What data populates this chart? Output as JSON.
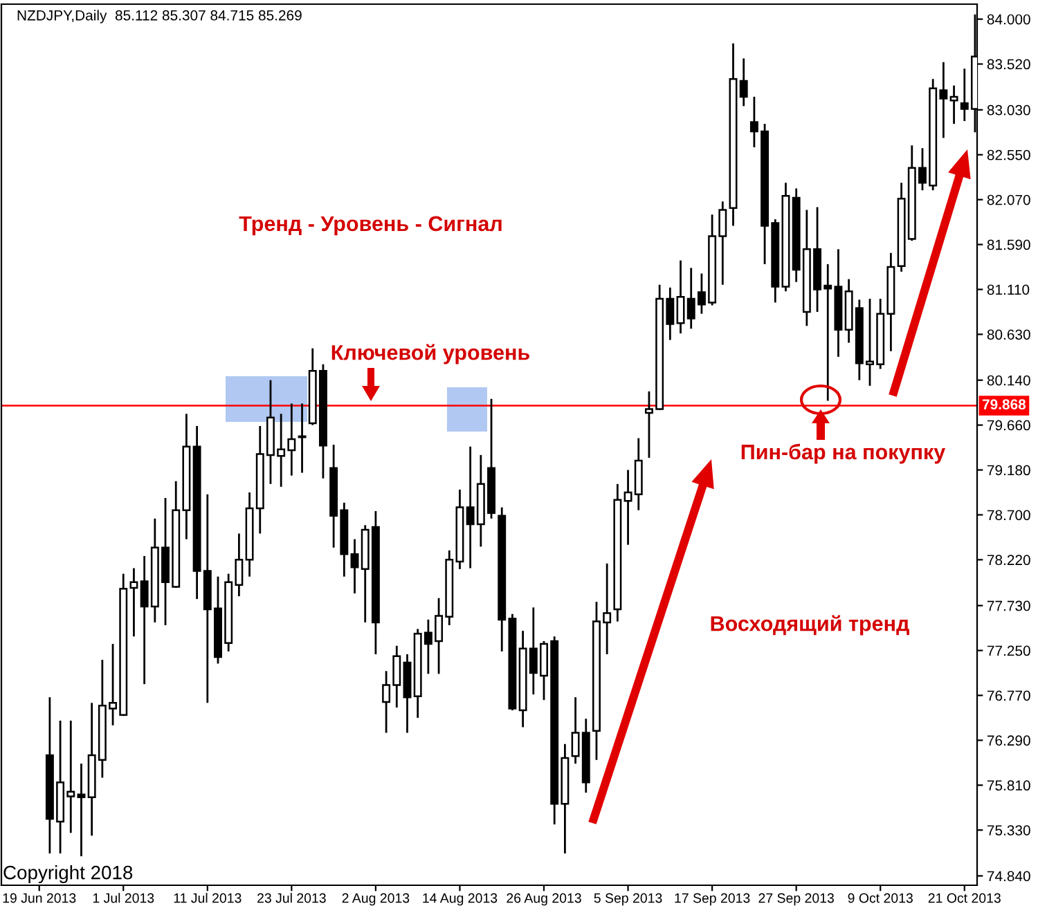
{
  "chart_data": {
    "type": "candlestick",
    "annotations": [
      "NZDJPY,Daily  85.112 85.307 84.715 85.269",
      "Тренд - Уровень - Сигнал",
      "Ключевой уровень",
      "Пин-бар на покупку",
      "Восходящий тренд",
      "Copyright 2018"
    ],
    "categories": [
      "19 Jun 2013",
      null,
      null,
      null,
      null,
      null,
      null,
      null,
      "1 Jul 2013",
      null,
      null,
      null,
      null,
      null,
      null,
      null,
      "11 Jul 2013",
      null,
      null,
      null,
      null,
      null,
      null,
      null,
      "23 Jul 2013",
      null,
      null,
      null,
      null,
      null,
      null,
      null,
      "2 Aug 2013",
      null,
      null,
      null,
      null,
      null,
      null,
      null,
      "14 Aug 2013",
      null,
      null,
      null,
      null,
      null,
      null,
      null,
      "26 Aug 2013",
      null,
      null,
      null,
      null,
      null,
      null,
      null,
      "5 Sep 2013",
      null,
      null,
      null,
      null,
      null,
      null,
      null,
      "17 Sep 2013",
      null,
      null,
      null,
      null,
      null,
      null,
      null,
      "27 Sep 2013",
      null,
      null,
      null,
      null,
      null,
      null,
      null,
      "9 Oct 2013",
      null,
      null,
      null,
      null,
      null,
      null,
      null,
      "21 Oct 2013",
      null
    ],
    "ohlc": [
      null,
      [
        76.13,
        76.75,
        75.08,
        75.45
      ],
      [
        75.42,
        76.5,
        75.08,
        75.84
      ],
      [
        75.69,
        76.5,
        75.3,
        75.74
      ],
      [
        75.71,
        76.04,
        75.05,
        75.68
      ],
      [
        75.68,
        76.69,
        75.27,
        76.13
      ],
      [
        76.08,
        77.15,
        75.89,
        76.66
      ],
      [
        76.63,
        77.32,
        76.45,
        76.69
      ],
      [
        76.56,
        78.07,
        76.55,
        77.91
      ],
      [
        77.92,
        78.13,
        77.4,
        77.98
      ],
      [
        77.99,
        78.26,
        76.89,
        77.72
      ],
      [
        77.72,
        78.66,
        77.55,
        78.35
      ],
      [
        78.35,
        78.88,
        77.52,
        77.98
      ],
      [
        77.93,
        79.06,
        77.92,
        78.75
      ],
      [
        78.75,
        79.78,
        78.44,
        79.43
      ],
      [
        79.43,
        79.65,
        77.8,
        78.1
      ],
      [
        78.1,
        78.92,
        76.69,
        77.69
      ],
      [
        77.7,
        78.04,
        77.11,
        77.18
      ],
      [
        77.33,
        78.07,
        77.24,
        77.98
      ],
      [
        77.95,
        78.5,
        77.83,
        78.22
      ],
      [
        78.22,
        78.94,
        78.04,
        78.77
      ],
      [
        78.77,
        79.65,
        78.5,
        79.35
      ],
      [
        79.34,
        80.14,
        79.03,
        79.74
      ],
      [
        79.33,
        79.78,
        79.0,
        79.4
      ],
      [
        79.39,
        79.89,
        79.12,
        79.51
      ],
      [
        79.53,
        79.89,
        79.15,
        79.54
      ],
      [
        79.68,
        80.48,
        79.66,
        80.24
      ],
      [
        80.24,
        80.31,
        79.09,
        79.44
      ],
      [
        79.2,
        79.45,
        78.35,
        78.69
      ],
      [
        78.75,
        78.83,
        78.04,
        78.28
      ],
      [
        78.28,
        78.44,
        77.86,
        78.14
      ],
      [
        78.12,
        78.59,
        77.55,
        78.54
      ],
      [
        78.57,
        78.74,
        77.21,
        77.55
      ],
      [
        76.7,
        77.03,
        76.37,
        76.88
      ],
      [
        76.88,
        77.3,
        76.64,
        77.19
      ],
      [
        77.12,
        77.21,
        76.37,
        76.75
      ],
      [
        76.76,
        77.48,
        76.53,
        77.43
      ],
      [
        77.44,
        77.58,
        77.0,
        77.32
      ],
      [
        77.35,
        77.81,
        77.0,
        77.62
      ],
      [
        77.61,
        78.32,
        77.52,
        78.22
      ],
      [
        78.2,
        78.97,
        78.12,
        78.78
      ],
      [
        78.78,
        79.43,
        78.13,
        78.6
      ],
      [
        78.6,
        79.34,
        78.36,
        79.03
      ],
      [
        79.2,
        79.94,
        78.66,
        78.72
      ],
      [
        78.69,
        78.78,
        77.24,
        77.58
      ],
      [
        77.59,
        77.64,
        76.61,
        76.63
      ],
      [
        76.61,
        77.46,
        76.43,
        77.27
      ],
      [
        77.27,
        77.71,
        76.78,
        77.01
      ],
      [
        76.98,
        77.35,
        76.72,
        77.32
      ],
      [
        77.35,
        77.4,
        75.39,
        75.61
      ],
      [
        75.61,
        76.25,
        75.08,
        76.1
      ],
      [
        76.12,
        76.75,
        76.04,
        76.37
      ],
      [
        76.37,
        76.52,
        75.73,
        75.84
      ],
      [
        76.39,
        77.77,
        76.08,
        77.56
      ],
      [
        77.55,
        78.18,
        77.21,
        77.65
      ],
      [
        77.69,
        79.03,
        77.56,
        78.86
      ],
      [
        78.85,
        79.18,
        78.38,
        78.94
      ],
      [
        78.92,
        79.52,
        78.75,
        79.28
      ],
      [
        79.79,
        80.02,
        79.31,
        79.83
      ],
      [
        79.83,
        81.16,
        79.82,
        81.01
      ],
      [
        81.01,
        81.13,
        80.57,
        80.74
      ],
      [
        80.75,
        81.42,
        80.64,
        81.03
      ],
      [
        81.01,
        81.34,
        80.69,
        80.8
      ],
      [
        81.08,
        81.28,
        80.85,
        80.95
      ],
      [
        80.97,
        81.91,
        80.94,
        81.68
      ],
      [
        81.68,
        82.05,
        81.16,
        81.96
      ],
      [
        81.98,
        83.74,
        81.79,
        83.36
      ],
      [
        83.34,
        83.58,
        83.07,
        83.17
      ],
      [
        82.9,
        83.17,
        82.63,
        82.8
      ],
      [
        82.8,
        82.88,
        81.38,
        81.79
      ],
      [
        81.82,
        81.86,
        80.97,
        81.14
      ],
      [
        81.14,
        82.25,
        81.09,
        82.11
      ],
      [
        82.09,
        82.19,
        81.19,
        81.32
      ],
      [
        80.87,
        81.96,
        80.72,
        81.54
      ],
      [
        81.54,
        81.99,
        80.87,
        81.11
      ],
      [
        81.15,
        81.38,
        79.92,
        81.12
      ],
      [
        81.14,
        81.54,
        80.39,
        80.68
      ],
      [
        80.68,
        81.22,
        80.54,
        81.09
      ],
      [
        80.91,
        81.0,
        80.14,
        80.32
      ],
      [
        80.31,
        81.01,
        80.08,
        80.34
      ],
      [
        80.31,
        81.01,
        80.26,
        80.85
      ],
      [
        80.85,
        81.5,
        80.45,
        81.35
      ],
      [
        81.36,
        82.25,
        81.3,
        82.08
      ],
      [
        81.65,
        82.65,
        81.63,
        82.41
      ],
      [
        82.41,
        82.62,
        82.17,
        82.25
      ],
      [
        82.22,
        83.36,
        82.17,
        83.26
      ],
      [
        83.24,
        83.54,
        82.73,
        83.15
      ],
      [
        83.13,
        83.29,
        82.88,
        83.17
      ],
      [
        83.1,
        83.47,
        82.91,
        83.04
      ],
      [
        83.04,
        84.05,
        82.79,
        83.6
      ]
    ],
    "ylim": [
      74.74,
      84.16
    ],
    "yticks": [
      {
        "value": 74.84,
        "label": "74.840"
      },
      {
        "value": 75.33,
        "label": "75.330"
      },
      {
        "value": 75.81,
        "label": "75.810"
      },
      {
        "value": 76.29,
        "label": "76.290"
      },
      {
        "value": 76.77,
        "label": "76.770"
      },
      {
        "value": 77.25,
        "label": "77.250"
      },
      {
        "value": 77.73,
        "label": "77.730"
      },
      {
        "value": 78.22,
        "label": "78.220"
      },
      {
        "value": 78.7,
        "label": "78.700"
      },
      {
        "value": 79.18,
        "label": "79.180"
      },
      {
        "value": 79.66,
        "label": "79.660"
      },
      {
        "value": 80.14,
        "label": "80.140"
      },
      {
        "value": 80.63,
        "label": "80.630"
      },
      {
        "value": 81.11,
        "label": "81.110"
      },
      {
        "value": 81.59,
        "label": "81.590"
      },
      {
        "value": 82.07,
        "label": "82.070"
      },
      {
        "value": 82.55,
        "label": "82.550"
      },
      {
        "value": 83.03,
        "label": "83.030"
      },
      {
        "value": 83.52,
        "label": "83.520"
      },
      {
        "value": 84.0,
        "label": "84.000"
      }
    ],
    "ref_lines": [
      {
        "axis": "y",
        "value": 79.868,
        "label": "79.868",
        "color": "#ff0000"
      }
    ],
    "grid": false,
    "legend": false
  }
}
